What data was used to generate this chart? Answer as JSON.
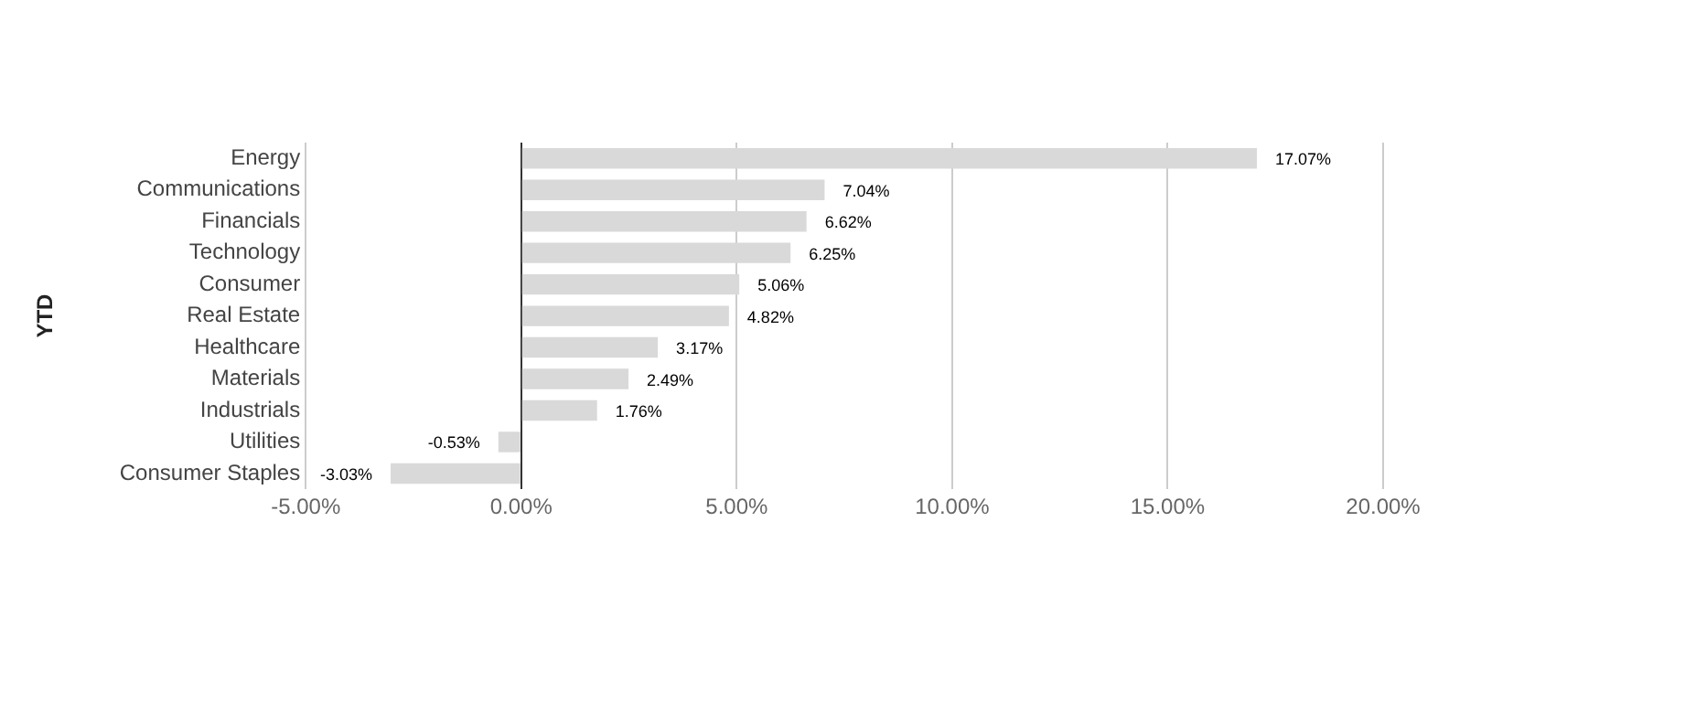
{
  "chart_data": {
    "type": "bar",
    "orientation": "horizontal",
    "ylabel": "YTD",
    "categories": [
      "Energy",
      "Communications",
      "Financials",
      "Technology",
      "Consumer",
      "Real Estate",
      "Healthcare",
      "Materials",
      "Industrials",
      "Utilities",
      "Consumer Staples"
    ],
    "values": [
      17.07,
      7.04,
      6.62,
      6.25,
      5.06,
      4.82,
      3.17,
      2.49,
      1.76,
      -0.53,
      -3.03
    ],
    "value_labels": [
      "17.07%",
      "7.04%",
      "6.62%",
      "6.25%",
      "5.06%",
      "4.82%",
      "3.17%",
      "2.49%",
      "1.76%",
      "-0.53%",
      "-3.03%"
    ],
    "color": "#d9d9d9",
    "xlim": [
      -5,
      20
    ],
    "xticks": [
      {
        "value": -5,
        "label": "-5.00%"
      },
      {
        "value": 0,
        "label": "0.00%"
      },
      {
        "value": 5,
        "label": "5.00%"
      },
      {
        "value": 10,
        "label": "10.00%"
      },
      {
        "value": 15,
        "label": "15.00%"
      },
      {
        "value": 20,
        "label": "20.00%"
      }
    ],
    "grid": "x",
    "legend": false
  }
}
